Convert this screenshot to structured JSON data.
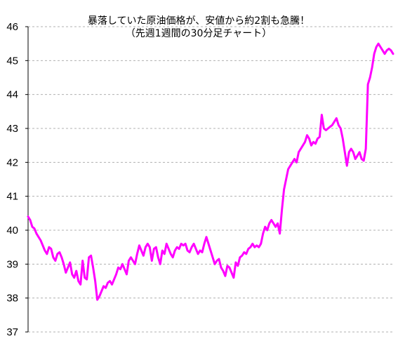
{
  "chart_data": {
    "type": "line",
    "title": "暴落していた原油価格が、安値から約2割も急騰！",
    "subtitle": "（先週1週間の30分足チャート）",
    "xlabel": "",
    "ylabel": "",
    "ylim": [
      37,
      46
    ],
    "yticks": [
      "37",
      "38",
      "39",
      "40",
      "41",
      "42",
      "43",
      "44",
      "45",
      "46"
    ],
    "grid": true,
    "grid_style": "dashed",
    "legend": "none",
    "line_color": "#ff00ff",
    "series": [
      {
        "values": [
          40.4,
          40.3,
          40.1,
          40.05,
          39.9,
          39.8,
          39.7,
          39.55,
          39.4,
          39.3,
          39.5,
          39.45,
          39.2,
          39.1,
          39.3,
          39.35,
          39.2,
          39.0,
          38.75,
          38.9,
          39.05,
          38.7,
          38.6,
          38.8,
          38.5,
          38.4,
          39.1,
          38.6,
          38.55,
          39.2,
          39.25,
          38.9,
          38.5,
          37.95,
          38.05,
          38.2,
          38.35,
          38.3,
          38.45,
          38.5,
          38.4,
          38.55,
          38.7,
          38.9,
          38.85,
          39.0,
          38.85,
          38.7,
          39.1,
          39.2,
          39.1,
          39.0,
          39.3,
          39.55,
          39.4,
          39.25,
          39.5,
          39.6,
          39.5,
          39.1,
          39.45,
          39.5,
          39.2,
          39.0,
          39.4,
          39.3,
          39.6,
          39.45,
          39.3,
          39.2,
          39.4,
          39.5,
          39.45,
          39.6,
          39.55,
          39.6,
          39.4,
          39.35,
          39.5,
          39.6,
          39.45,
          39.3,
          39.4,
          39.35,
          39.6,
          39.8,
          39.6,
          39.4,
          39.2,
          39.0,
          39.1,
          39.15,
          38.9,
          38.8,
          38.65,
          38.95,
          38.9,
          38.75,
          38.6,
          39.05,
          38.95,
          39.2,
          39.25,
          39.35,
          39.3,
          39.45,
          39.5,
          39.6,
          39.5,
          39.55,
          39.5,
          39.6,
          39.9,
          40.1,
          40.0,
          40.2,
          40.3,
          40.2,
          40.1,
          40.2,
          39.9,
          40.6,
          41.2,
          41.5,
          41.8,
          41.9,
          42.0,
          42.1,
          42.0,
          42.3,
          42.4,
          42.5,
          42.6,
          42.8,
          42.7,
          42.5,
          42.6,
          42.55,
          42.7,
          42.75,
          43.4,
          43.0,
          42.95,
          43.0,
          43.05,
          43.1,
          43.2,
          43.3,
          43.1,
          43.0,
          42.7,
          42.3,
          41.9,
          42.3,
          42.4,
          42.3,
          42.1,
          42.2,
          42.3,
          42.1,
          42.05,
          42.4,
          44.3,
          44.5,
          44.8,
          45.2,
          45.4,
          45.5,
          45.4,
          45.3,
          45.2,
          45.3,
          45.35,
          45.3,
          45.2
        ]
      }
    ]
  }
}
